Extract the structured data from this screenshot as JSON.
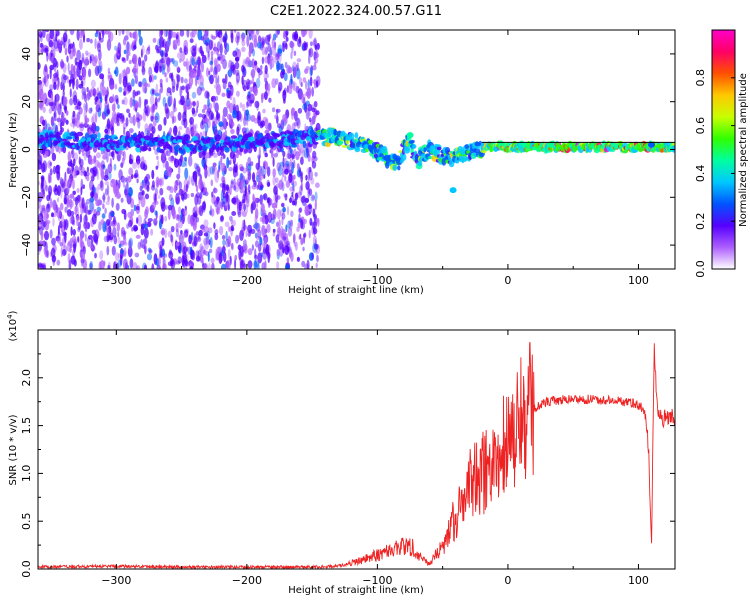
{
  "title": "C2E1.2022.324.00.57.G11",
  "chart_data": [
    {
      "type": "heatmap",
      "title": "C2E1.2022.324.00.57.G11",
      "xlabel": "Height of straight line (km)",
      "ylabel": "Frequency (Hz)",
      "xlim": [
        -360,
        128
      ],
      "ylim": [
        -50,
        50
      ],
      "x_ticks": [
        -300,
        -200,
        -100,
        0,
        100
      ],
      "y_ticks": [
        -40,
        -20,
        0,
        20,
        40
      ],
      "colorbar": {
        "label": "Normalized spectral amplitude",
        "range": [
          0,
          1
        ],
        "ticks": [
          "0.0",
          "0.2",
          "0.4",
          "0.6",
          "0.8"
        ],
        "colors": [
          "#ffffff",
          "#ad5eff",
          "#5500ff",
          "#0055ff",
          "#00c8ff",
          "#00ffa0",
          "#30ff00",
          "#c8ff00",
          "#ffc800",
          "#ff5000",
          "#ff0066",
          "#ff00c8"
        ]
      },
      "features": {
        "scatter_region_x": [
          -360,
          -145
        ],
        "clear_region_x": [
          -145,
          128
        ],
        "main_trace": [
          {
            "x": -360,
            "y": 4
          },
          {
            "x": -300,
            "y": 3
          },
          {
            "x": -250,
            "y": 2
          },
          {
            "x": -200,
            "y": 3
          },
          {
            "x": -150,
            "y": 5
          },
          {
            "x": -130,
            "y": 5
          },
          {
            "x": -110,
            "y": 2
          },
          {
            "x": -95,
            "y": -3
          },
          {
            "x": -85,
            "y": -6
          },
          {
            "x": -75,
            "y": 5
          },
          {
            "x": -70,
            "y": -5
          },
          {
            "x": -60,
            "y": 0
          },
          {
            "x": -50,
            "y": -3
          },
          {
            "x": -40,
            "y": -3
          },
          {
            "x": -25,
            "y": 0
          },
          {
            "x": -10,
            "y": 1
          },
          {
            "x": 0,
            "y": 1
          },
          {
            "x": 50,
            "y": 1
          },
          {
            "x": 100,
            "y": 1
          },
          {
            "x": 128,
            "y": 1
          }
        ],
        "upper_boundary_line": {
          "x": [
            -20,
            128
          ],
          "y": 3
        }
      }
    },
    {
      "type": "line",
      "xlabel": "Height of straight line (km)",
      "ylabel": "SNR (10 * v/v)",
      "scale_label": "(x10",
      "scale_exponent": "4",
      "xlim": [
        -360,
        128
      ],
      "ylim": [
        0,
        2.5
      ],
      "x_ticks": [
        -300,
        -200,
        -100,
        0,
        100
      ],
      "y_ticks": [
        "0.0",
        "0.5",
        "1.0",
        "1.5",
        "2.0"
      ],
      "series": [
        {
          "color": "#ee2222",
          "points": [
            {
              "x": -360,
              "y": 0.02
            },
            {
              "x": -300,
              "y": 0.03
            },
            {
              "x": -250,
              "y": 0.02
            },
            {
              "x": -200,
              "y": 0.02
            },
            {
              "x": -150,
              "y": 0.02
            },
            {
              "x": -130,
              "y": 0.03
            },
            {
              "x": -110,
              "y": 0.1
            },
            {
              "x": -100,
              "y": 0.15
            },
            {
              "x": -90,
              "y": 0.2
            },
            {
              "x": -75,
              "y": 0.25
            },
            {
              "x": -60,
              "y": 0.05
            },
            {
              "x": -50,
              "y": 0.25
            },
            {
              "x": -40,
              "y": 0.55
            },
            {
              "x": -30,
              "y": 0.85
            },
            {
              "x": -20,
              "y": 1.0
            },
            {
              "x": -10,
              "y": 1.15
            },
            {
              "x": 0,
              "y": 1.35
            },
            {
              "x": 10,
              "y": 1.55
            },
            {
              "x": 20,
              "y": 1.68
            },
            {
              "x": 30,
              "y": 1.75
            },
            {
              "x": 50,
              "y": 1.78
            },
            {
              "x": 70,
              "y": 1.77
            },
            {
              "x": 90,
              "y": 1.75
            },
            {
              "x": 100,
              "y": 1.72
            },
            {
              "x": 105,
              "y": 1.65
            },
            {
              "x": 108,
              "y": 1.2
            },
            {
              "x": 110,
              "y": 0.15
            },
            {
              "x": 112,
              "y": 2.3
            },
            {
              "x": 115,
              "y": 1.6
            },
            {
              "x": 120,
              "y": 1.58
            },
            {
              "x": 128,
              "y": 1.57
            }
          ]
        }
      ]
    }
  ]
}
